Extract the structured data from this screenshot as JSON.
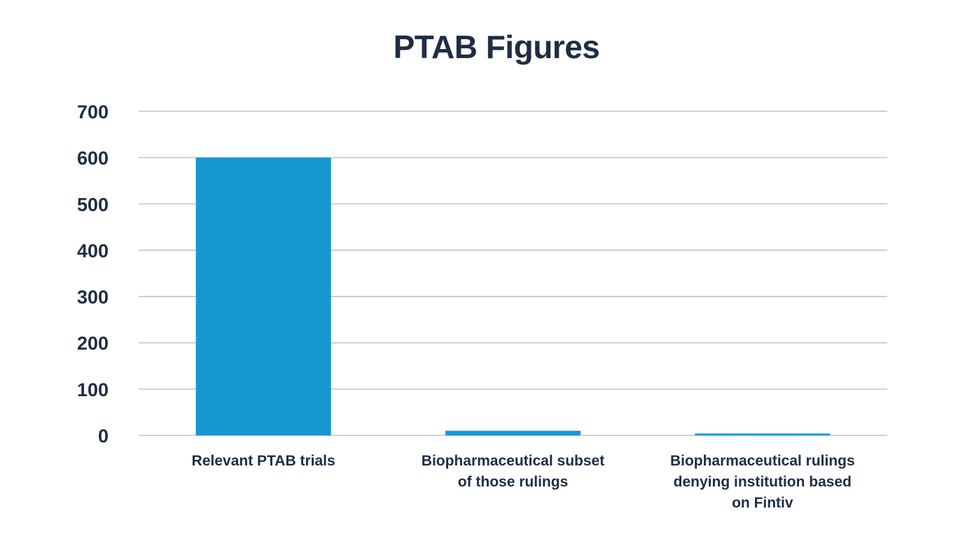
{
  "chart_data": {
    "type": "bar",
    "title": "PTAB Figures",
    "categories": [
      [
        "Relevant PTAB trials"
      ],
      [
        "Biopharmaceutical subset",
        "of those rulings"
      ],
      [
        "Biopharmaceutical rulings",
        "denying institution based",
        "on Fintiv"
      ]
    ],
    "values": [
      600,
      10,
      4
    ],
    "ylim": [
      0,
      700
    ],
    "yticks": [
      "0",
      "100",
      "200",
      "300",
      "400",
      "500",
      "600",
      "700"
    ],
    "grid": true,
    "colors": {
      "bar": "#1797d0",
      "grid": "#b8b8b8",
      "text": "#1f2d44"
    }
  }
}
